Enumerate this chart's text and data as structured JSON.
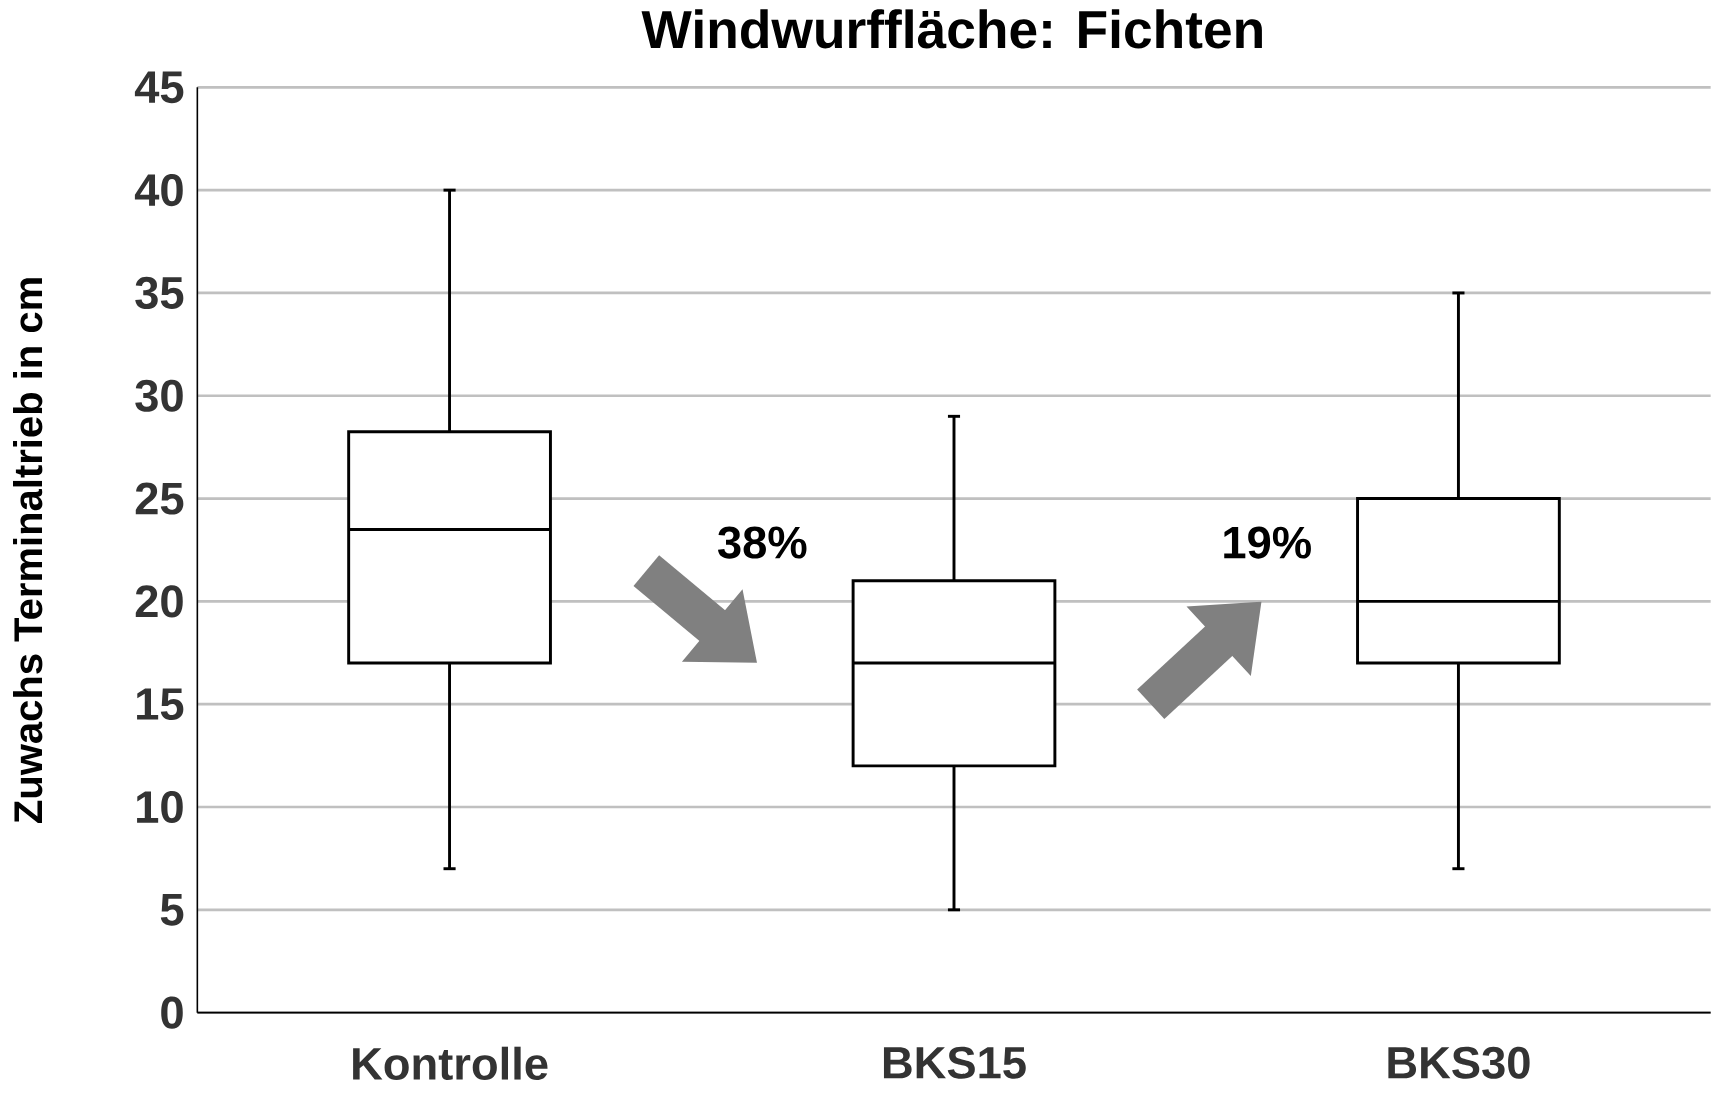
{
  "chart_data": {
    "type": "box",
    "title": "Windwurffläche: Fichten",
    "ylabel": "Zuwachs Terminaltrieb in cm",
    "categories": [
      "Kontrolle",
      "BKS15",
      "BKS30"
    ],
    "boxes": [
      {
        "low": 7,
        "q1": 17,
        "median": 23.5,
        "q3": 28.25,
        "high": 40
      },
      {
        "low": 5,
        "q1": 12,
        "median": 17,
        "q3": 21,
        "high": 29
      },
      {
        "low": 7,
        "q1": 17,
        "median": 20,
        "q3": 25,
        "high": 35
      }
    ],
    "ylim": [
      0,
      45
    ],
    "yticks": [
      0,
      5,
      10,
      15,
      20,
      25,
      30,
      35,
      40,
      45
    ],
    "grid": "y",
    "annotations": [
      "38%",
      "19%"
    ]
  }
}
